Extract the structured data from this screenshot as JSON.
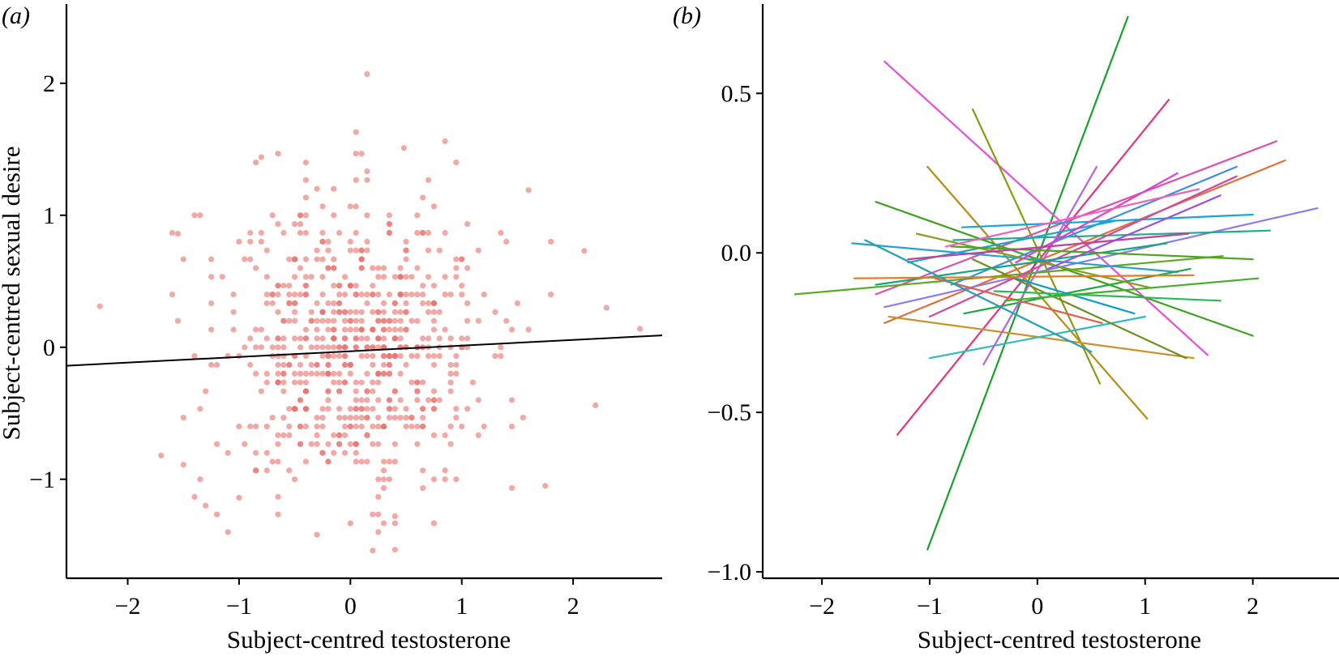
{
  "chart_data": [
    {
      "panel_label": "(a)",
      "type": "scatter",
      "xlabel": "Subject-centred testosterone",
      "ylabel": "Subject-centred sexual desire",
      "xlim": [
        -2.55,
        2.8
      ],
      "ylim": [
        -1.75,
        2.6
      ],
      "xticks": [
        -2,
        -1,
        0,
        1,
        2
      ],
      "xtick_labels": [
        "−2",
        "−1",
        "0",
        "1",
        "2"
      ],
      "yticks": [
        -1,
        0,
        1,
        2
      ],
      "ytick_labels": [
        "−1",
        "0",
        "1",
        "2"
      ],
      "point_color": "#e8706b",
      "fit_line_color": "#000000",
      "grid": false,
      "fit_line": {
        "x": [
          -2.55,
          2.8
        ],
        "y": [
          -0.14,
          0.09
        ]
      },
      "point_count": 700,
      "annotated_points": [
        {
          "x": 0.15,
          "y": 2.07
        },
        {
          "x": 0.05,
          "y": 1.63
        },
        {
          "x": 0.48,
          "y": 1.51
        },
        {
          "x": 0.85,
          "y": 1.56
        },
        {
          "x": -0.8,
          "y": 1.44
        },
        {
          "x": 1.6,
          "y": 1.19
        },
        {
          "x": -2.25,
          "y": 0.31
        },
        {
          "x": -1.55,
          "y": 0.86
        },
        {
          "x": -1.4,
          "y": 1.0
        },
        {
          "x": 2.1,
          "y": 0.73
        },
        {
          "x": 2.3,
          "y": 0.3
        },
        {
          "x": 2.6,
          "y": 0.14
        },
        {
          "x": 2.2,
          "y": -0.44
        },
        {
          "x": -1.7,
          "y": -0.82
        },
        {
          "x": -1.5,
          "y": -0.89
        },
        {
          "x": 1.75,
          "y": -1.05
        },
        {
          "x": 0.2,
          "y": -1.54
        },
        {
          "x": -0.3,
          "y": -1.42
        },
        {
          "x": 0.4,
          "y": -1.28
        },
        {
          "x": -1.0,
          "y": -1.14
        }
      ]
    },
    {
      "panel_label": "(b)",
      "type": "line",
      "xlabel": "Subject-centred testosterone",
      "ylabel": "",
      "xlim": [
        -2.55,
        2.8
      ],
      "ylim": [
        -1.02,
        0.78
      ],
      "xticks": [
        -2,
        -1,
        0,
        1,
        2
      ],
      "xtick_labels": [
        "−2",
        "−1",
        "0",
        "1",
        "2"
      ],
      "yticks": [
        -1.0,
        -0.5,
        0.0,
        0.5
      ],
      "ytick_labels": [
        "−1.0",
        "−0.5",
        "0.0",
        "0.5"
      ],
      "grid": false,
      "series": [
        {
          "color": "#1aa02c",
          "x": [
            -1.02,
            0.84
          ],
          "y": [
            -0.93,
            0.74
          ]
        },
        {
          "color": "#e64fd8",
          "x": [
            -1.42,
            1.58
          ],
          "y": [
            0.6,
            -0.32
          ]
        },
        {
          "color": "#e0357f",
          "x": [
            -1.3,
            1.22
          ],
          "y": [
            -0.57,
            0.48
          ]
        },
        {
          "color": "#8b9a12",
          "x": [
            -0.6,
            0.58
          ],
          "y": [
            0.45,
            -0.41
          ]
        },
        {
          "color": "#b88a12",
          "x": [
            -1.02,
            1.02
          ],
          "y": [
            0.27,
            -0.52
          ]
        },
        {
          "color": "#e06f3a",
          "x": [
            -1.42,
            2.3
          ],
          "y": [
            -0.22,
            0.29
          ]
        },
        {
          "color": "#df4fa7",
          "x": [
            -1.5,
            2.22
          ],
          "y": [
            -0.13,
            0.35
          ]
        },
        {
          "color": "#8e7bec",
          "x": [
            -1.42,
            2.6
          ],
          "y": [
            -0.17,
            0.14
          ]
        },
        {
          "color": "#14a7d6",
          "x": [
            -0.7,
            2.0
          ],
          "y": [
            0.08,
            0.12
          ]
        },
        {
          "color": "#1fab8c",
          "x": [
            -0.78,
            2.16
          ],
          "y": [
            0.04,
            0.07
          ]
        },
        {
          "color": "#5aab1c",
          "x": [
            -2.25,
            1.72
          ],
          "y": [
            -0.13,
            -0.01
          ]
        },
        {
          "color": "#3ca31e",
          "x": [
            -1.5,
            2.0
          ],
          "y": [
            0.16,
            -0.26
          ]
        },
        {
          "color": "#c9922a",
          "x": [
            -1.38,
            1.45
          ],
          "y": [
            -0.2,
            -0.33
          ]
        },
        {
          "color": "#2a9fd0",
          "x": [
            -1.72,
            1.3
          ],
          "y": [
            0.03,
            -0.06
          ]
        },
        {
          "color": "#2fbac0",
          "x": [
            -1.0,
            1.0
          ],
          "y": [
            -0.33,
            -0.2
          ]
        },
        {
          "color": "#1fa843",
          "x": [
            -0.68,
            1.42
          ],
          "y": [
            -0.19,
            -0.05
          ]
        },
        {
          "color": "#6a8f1e",
          "x": [
            -0.6,
            1.38
          ],
          "y": [
            -0.02,
            -0.33
          ]
        },
        {
          "color": "#b463e6",
          "x": [
            -0.5,
            0.55
          ],
          "y": [
            -0.35,
            0.27
          ]
        },
        {
          "color": "#d04a9d",
          "x": [
            -1.0,
            1.85
          ],
          "y": [
            -0.2,
            0.24
          ]
        },
        {
          "color": "#3d8fe0",
          "x": [
            -0.8,
            1.85
          ],
          "y": [
            -0.1,
            0.27
          ]
        },
        {
          "color": "#19a7c4",
          "x": [
            -1.2,
            0.72
          ],
          "y": [
            -0.03,
            0.1
          ]
        },
        {
          "color": "#7fa018",
          "x": [
            -1.12,
            1.06
          ],
          "y": [
            0.06,
            -0.11
          ]
        },
        {
          "color": "#11a77a",
          "x": [
            -1.5,
            1.2
          ],
          "y": [
            -0.1,
            0.03
          ]
        },
        {
          "color": "#df3ecf",
          "x": [
            -0.2,
            1.3
          ],
          "y": [
            -0.03,
            0.25
          ]
        },
        {
          "color": "#2bb85b",
          "x": [
            -0.4,
            1.7
          ],
          "y": [
            -0.12,
            -0.15
          ]
        },
        {
          "color": "#e05e4a",
          "x": [
            -0.95,
            0.6
          ],
          "y": [
            -0.08,
            -0.22
          ]
        },
        {
          "color": "#4ea41f",
          "x": [
            -0.8,
            2.0
          ],
          "y": [
            0.02,
            -0.02
          ]
        },
        {
          "color": "#c43f9b",
          "x": [
            -1.2,
            1.4
          ],
          "y": [
            -0.02,
            0.06
          ]
        },
        {
          "color": "#0b9bc8",
          "x": [
            -0.2,
            0.9
          ],
          "y": [
            -0.08,
            -0.19
          ]
        },
        {
          "color": "#e27a22",
          "x": [
            -1.7,
            1.45
          ],
          "y": [
            -0.08,
            -0.07
          ]
        },
        {
          "color": "#9b4fe0",
          "x": [
            0.1,
            1.7
          ],
          "y": [
            -0.05,
            0.18
          ]
        },
        {
          "color": "#47ad2f",
          "x": [
            -0.3,
            2.05
          ],
          "y": [
            -0.15,
            -0.08
          ]
        },
        {
          "color": "#f062b4",
          "x": [
            -0.85,
            1.5
          ],
          "y": [
            0.02,
            0.2
          ]
        },
        {
          "color": "#22a0b8",
          "x": [
            -1.6,
            0.5
          ],
          "y": [
            0.04,
            -0.31
          ]
        }
      ]
    }
  ]
}
